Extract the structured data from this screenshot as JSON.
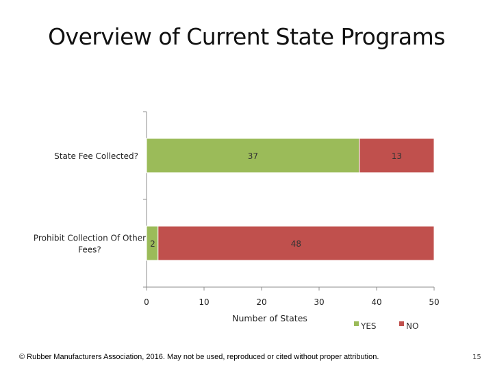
{
  "slide": {
    "title": "Overview of Current State Programs",
    "footer": "© Rubber Manufacturers Association, 2016.  May not be used, reproduced or cited without proper attribution.",
    "page_number": "15"
  },
  "chart_data": {
    "type": "bar",
    "orientation": "horizontal",
    "stacked": true,
    "categories": [
      "State Fee Collected?",
      "Prohibit Collection Of Other Fees?"
    ],
    "series": [
      {
        "name": "YES",
        "values": [
          37,
          2
        ],
        "color": "#9BBB59"
      },
      {
        "name": "NO",
        "values": [
          13,
          48
        ],
        "color": "#C0504D"
      }
    ],
    "xlabel": "Number of States",
    "xlim": [
      0,
      50
    ],
    "xticks": [
      0,
      10,
      20,
      30,
      40,
      50
    ],
    "legend": "bottom-right",
    "grid": false
  }
}
